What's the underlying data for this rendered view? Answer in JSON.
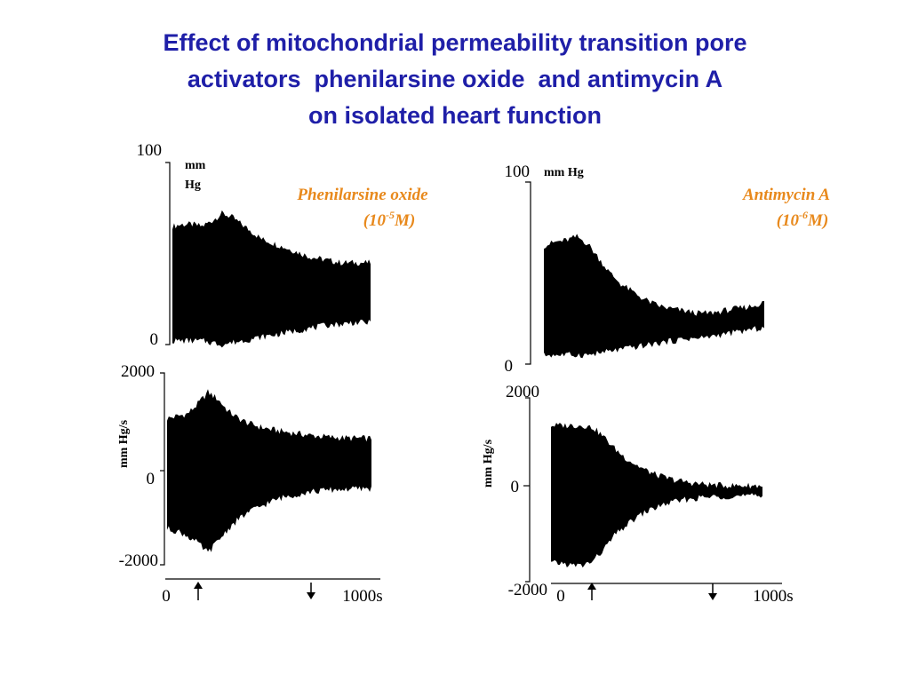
{
  "title_lines": [
    "Effect of mitochondrial permeability transition pore",
    "activators  phenilarsine oxide  and antimycin A",
    "on isolated heart function"
  ],
  "colors": {
    "title": "#1f1fa8",
    "drug_label": "#e8891c",
    "trace": "#000000"
  },
  "chart_data": [
    {
      "type": "area",
      "name": "pressure-left",
      "drug_name": "Phenilarsine oxide",
      "concentration_base": "(10",
      "concentration_exp": "-5",
      "concentration_tail": "M)",
      "ylabel_line1": "mm",
      "ylabel_line2": "Hg",
      "ytick_top": "100",
      "ytick_bottom": "0",
      "ylim": [
        0,
        100
      ],
      "x": [
        0,
        50,
        100,
        150,
        200,
        250,
        300,
        350,
        400,
        450,
        500,
        550,
        600,
        650,
        700,
        750,
        800,
        850,
        900,
        950,
        1000
      ],
      "upper": [
        65,
        66,
        66,
        65,
        68,
        72,
        70,
        66,
        62,
        58,
        56,
        54,
        52,
        50,
        48,
        47,
        46,
        45,
        45,
        45,
        45
      ],
      "lower": [
        2,
        2,
        2,
        2,
        1,
        0,
        1,
        2,
        3,
        4,
        5,
        6,
        7,
        8,
        9,
        10,
        11,
        11,
        12,
        12,
        12
      ]
    },
    {
      "type": "area",
      "name": "dpdt-left",
      "ylabel": "mm Hg/s",
      "ytick_top": "2000",
      "ytick_mid": "0",
      "ytick_bottom": "-2000",
      "xtick_left": "0",
      "xtick_right": "1000s",
      "ylim": [
        -2000,
        2000
      ],
      "x": [
        0,
        50,
        100,
        150,
        200,
        250,
        300,
        350,
        400,
        450,
        500,
        550,
        600,
        650,
        700,
        750,
        800,
        850,
        900,
        950,
        1000
      ],
      "upper": [
        1050,
        1100,
        1150,
        1350,
        1600,
        1450,
        1200,
        1050,
        950,
        880,
        830,
        790,
        760,
        730,
        700,
        680,
        660,
        650,
        640,
        640,
        630
      ],
      "lower": [
        -1250,
        -1300,
        -1400,
        -1550,
        -1750,
        -1500,
        -1250,
        -1050,
        -900,
        -800,
        -700,
        -620,
        -560,
        -520,
        -480,
        -460,
        -440,
        -430,
        -420,
        -420,
        -410
      ]
    },
    {
      "type": "area",
      "name": "pressure-right",
      "drug_name": "Antimycin A",
      "concentration_base": "(10",
      "concentration_exp": "-6",
      "concentration_tail": "M)",
      "ylabel": "mm Hg",
      "ytick_top": "100",
      "ytick_bottom": "0",
      "ylim": [
        0,
        100
      ],
      "x": [
        0,
        50,
        100,
        150,
        200,
        250,
        300,
        350,
        400,
        450,
        500,
        550,
        600,
        650,
        700,
        750,
        800,
        850,
        900,
        950,
        1000
      ],
      "upper": [
        65,
        67,
        68,
        70,
        66,
        58,
        50,
        44,
        40,
        36,
        33,
        31,
        30,
        29,
        28,
        28,
        29,
        30,
        31,
        32,
        34
      ],
      "lower": [
        5,
        5,
        5,
        5,
        5,
        6,
        7,
        8,
        9,
        10,
        11,
        12,
        13,
        14,
        14,
        15,
        16,
        17,
        18,
        19,
        20
      ]
    },
    {
      "type": "area",
      "name": "dpdt-right",
      "ylabel": "mm Hg/s",
      "ytick_top": "2000",
      "ytick_mid": "0",
      "ytick_bottom": "-2000",
      "xtick_left": "0",
      "xtick_right": "1000s",
      "ylim": [
        -2000,
        2000
      ],
      "x": [
        0,
        50,
        100,
        150,
        200,
        250,
        300,
        350,
        400,
        450,
        500,
        550,
        600,
        650,
        700,
        750,
        800,
        850,
        900,
        950,
        1000
      ],
      "upper": [
        1400,
        1400,
        1400,
        1400,
        1350,
        1150,
        900,
        700,
        550,
        420,
        320,
        250,
        200,
        160,
        130,
        110,
        100,
        90,
        90,
        90,
        90
      ],
      "lower": [
        -1600,
        -1600,
        -1650,
        -1650,
        -1550,
        -1300,
        -1000,
        -800,
        -620,
        -480,
        -380,
        -300,
        -250,
        -210,
        -180,
        -160,
        -150,
        -140,
        -140,
        -140,
        -140
      ]
    }
  ]
}
